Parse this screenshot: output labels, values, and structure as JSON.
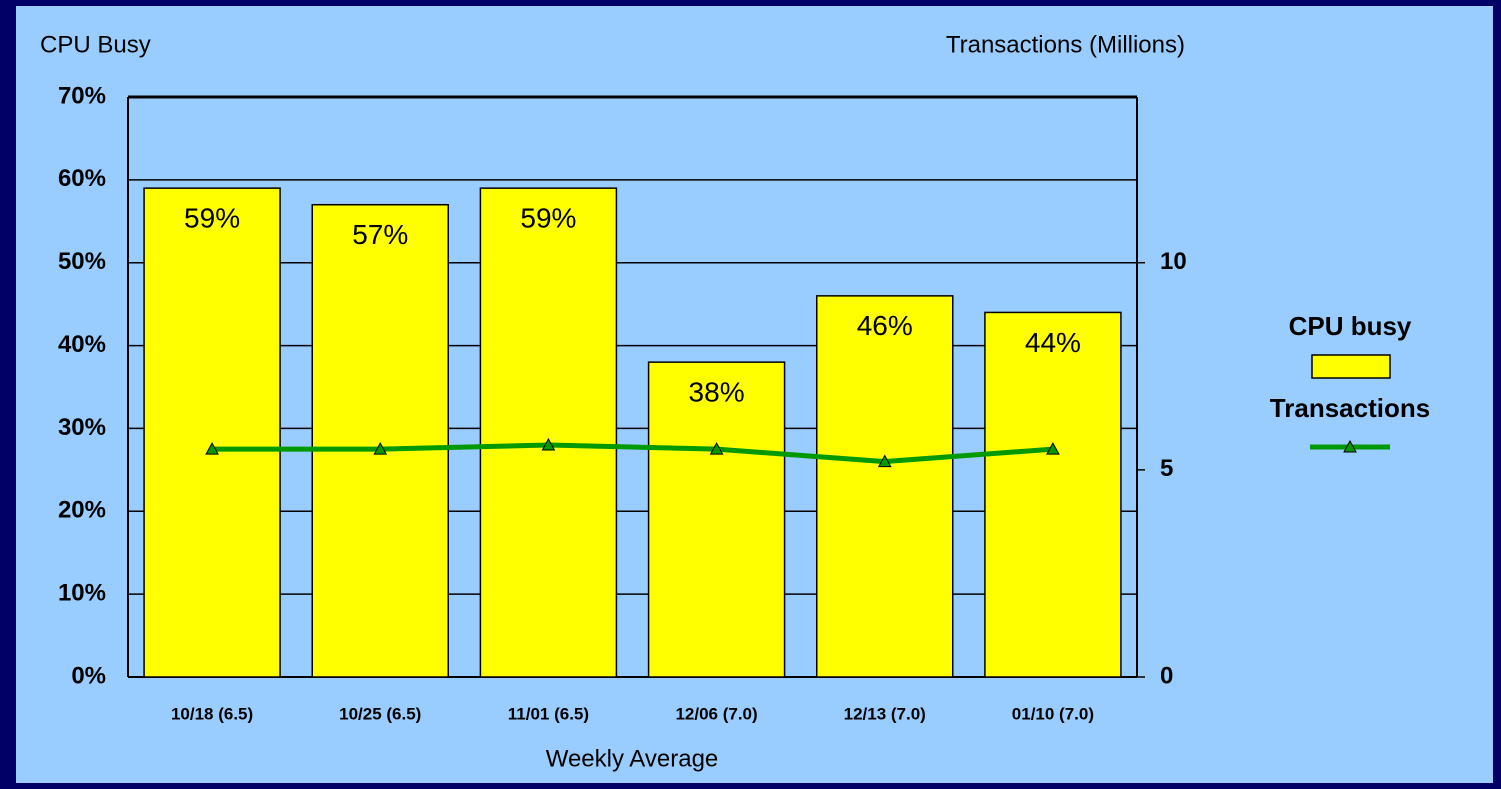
{
  "chart_data": {
    "type": "bar",
    "y_label": "CPU Busy",
    "y2_label": "Transactions (Millions)",
    "x_label": "Weekly Average",
    "categories": [
      "10/18 (6.5)",
      "10/25 (6.5)",
      "11/01 (6.5)",
      "12/06 (7.0)",
      "12/13 (7.0)",
      "01/10 (7.0)"
    ],
    "series": [
      {
        "name": "CPU busy",
        "type": "bar",
        "color": "#ffff00",
        "axis": "y",
        "values": [
          59,
          57,
          59,
          38,
          46,
          44
        ],
        "value_labels": [
          "59%",
          "57%",
          "59%",
          "38%",
          "46%",
          "44%"
        ]
      },
      {
        "name": "Transactions",
        "type": "line",
        "color": "#009900",
        "axis": "y2",
        "values": [
          5.5,
          5.5,
          5.6,
          5.5,
          5.2,
          5.5
        ]
      }
    ],
    "ylim": [
      0,
      70
    ],
    "yticks": [
      {
        "value": 0,
        "label": "0%"
      },
      {
        "value": 10,
        "label": "10%"
      },
      {
        "value": 20,
        "label": "20%"
      },
      {
        "value": 30,
        "label": "30%"
      },
      {
        "value": 40,
        "label": "40%"
      },
      {
        "value": 50,
        "label": "50%"
      },
      {
        "value": 60,
        "label": "60%"
      },
      {
        "value": 70,
        "label": "70%"
      }
    ],
    "y2lim": [
      0,
      14
    ],
    "y2ticks": [
      0,
      5,
      10
    ],
    "grid": true,
    "legend": "right"
  }
}
